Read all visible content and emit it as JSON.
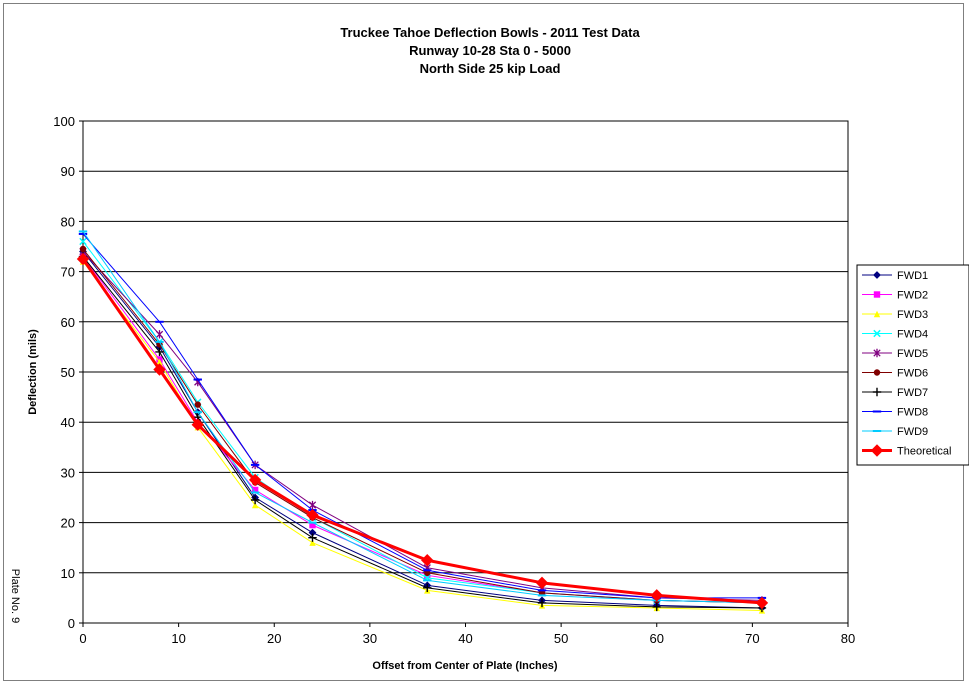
{
  "chart_data": {
    "type": "line",
    "title_lines": [
      "Truckee Tahoe Deflection Bowls - 2011 Test Data",
      "Runway 10-28 Sta 0 - 5000",
      "North Side 25 kip Load"
    ],
    "xlabel": "Offset from Center of Plate (Inches)",
    "ylabel": "Deflection (mils)",
    "xlim": [
      0,
      80
    ],
    "ylim": [
      0,
      100
    ],
    "xticks": [
      0,
      10,
      20,
      30,
      40,
      50,
      60,
      70,
      80
    ],
    "yticks": [
      0,
      10,
      20,
      30,
      40,
      50,
      60,
      70,
      80,
      90,
      100
    ],
    "grid": "horizontal",
    "legend_position": "right",
    "x": [
      0,
      8,
      12,
      18,
      24,
      36,
      48,
      60,
      71
    ],
    "series": [
      {
        "name": "FWD1",
        "color": "#000080",
        "marker": "diamond",
        "values": [
          74,
          55,
          42,
          25,
          18,
          7.5,
          4.5,
          3.5,
          3
        ]
      },
      {
        "name": "FWD2",
        "color": "#ff00ff",
        "marker": "square",
        "values": [
          73,
          52.5,
          40,
          26.5,
          19.5,
          9.5,
          6,
          4.5,
          4
        ]
      },
      {
        "name": "FWD3",
        "color": "#ffff00",
        "marker": "triangle",
        "values": [
          72,
          52,
          39,
          23.5,
          16,
          6.5,
          3.5,
          3,
          2.5
        ]
      },
      {
        "name": "FWD4",
        "color": "#00ffff",
        "marker": "x",
        "values": [
          76,
          56,
          44,
          29,
          21,
          9,
          6,
          4.5,
          4
        ]
      },
      {
        "name": "FWD5",
        "color": "#800080",
        "marker": "star",
        "values": [
          74,
          57.5,
          48,
          31.5,
          23.5,
          11,
          7,
          5,
          4.5
        ]
      },
      {
        "name": "FWD6",
        "color": "#800000",
        "marker": "circle",
        "values": [
          74.5,
          55.5,
          43.5,
          28,
          21,
          10,
          6,
          4.5,
          4
        ]
      },
      {
        "name": "FWD7",
        "color": "#000000",
        "marker": "plus",
        "values": [
          73,
          54,
          41,
          24.5,
          17,
          7,
          4,
          3.2,
          3
        ]
      },
      {
        "name": "FWD8",
        "color": "#0000ff",
        "marker": "dash",
        "values": [
          77.5,
          60,
          48.5,
          31.5,
          22.5,
          10.5,
          6.5,
          5,
          5
        ]
      },
      {
        "name": "FWD9",
        "color": "#00ccff",
        "marker": "dash",
        "values": [
          78,
          56,
          42,
          26,
          20,
          8.5,
          5.5,
          4.5,
          4
        ]
      },
      {
        "name": "Theoretical",
        "color": "#ff0000",
        "marker": "diamond",
        "thick": true,
        "values": [
          72.5,
          50.5,
          39.5,
          28.5,
          21.5,
          12.5,
          8,
          5.5,
          4
        ]
      }
    ]
  },
  "side_note": "Plate No. 9"
}
